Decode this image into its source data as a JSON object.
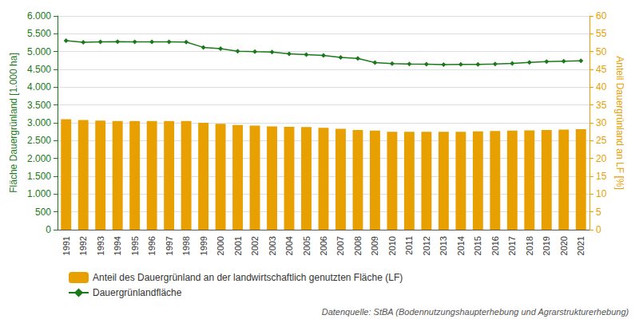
{
  "chart_data": {
    "type": "bar",
    "categories": [
      "1991",
      "1992",
      "1993",
      "1994",
      "1995",
      "1996",
      "1997",
      "1998",
      "1999",
      "2000",
      "2001",
      "2002",
      "2003",
      "2004",
      "2005",
      "2006",
      "2007",
      "2008",
      "2009",
      "2010",
      "2011",
      "2012",
      "2013",
      "2014",
      "2015",
      "2016",
      "2017",
      "2018",
      "2019",
      "2020",
      "2021"
    ],
    "series": [
      {
        "name": "Anteil des Dauergrünland an der landwirtschaftlich genutzten Fläche (LF)",
        "type": "bar",
        "axis": "y2",
        "color": "#E8A000",
        "values": [
          31.0,
          30.8,
          30.6,
          30.5,
          30.5,
          30.5,
          30.5,
          30.5,
          30.0,
          29.7,
          29.4,
          29.2,
          29.0,
          28.9,
          28.8,
          28.6,
          28.3,
          28.0,
          27.8,
          27.5,
          27.5,
          27.5,
          27.5,
          27.5,
          27.6,
          27.7,
          27.8,
          27.9,
          28.0,
          28.1,
          28.2
        ]
      },
      {
        "name": "Dauergrünlandfläche",
        "type": "line",
        "color": "#1A7A1A",
        "marker": "diamond",
        "values": [
          5305,
          5263,
          5270,
          5278,
          5273,
          5271,
          5270,
          5267,
          5118,
          5082,
          5010,
          4998,
          4988,
          4938,
          4912,
          4892,
          4838,
          4808,
          4692,
          4662,
          4652,
          4645,
          4635,
          4638,
          4638,
          4652,
          4670,
          4698,
          4718,
          4728,
          4738
        ]
      }
    ],
    "ylabel": "Fläche Dauergrünland [1.000 ha]",
    "y2label": "Anteil Dauergrünland an LF [%]",
    "ylim": [
      0,
      6000
    ],
    "yticks": [
      0,
      500,
      {
        "value": 1000,
        "label": "1.000"
      },
      {
        "value": 1500,
        "label": "1.500"
      },
      {
        "value": 2000,
        "label": "2.000"
      },
      {
        "value": 2500,
        "label": "2.500"
      },
      {
        "value": 3000,
        "label": "3.000"
      },
      {
        "value": 3500,
        "label": "3.500"
      },
      {
        "value": 4000,
        "label": "4.000"
      },
      {
        "value": 4500,
        "label": "4.500"
      },
      {
        "value": 5000,
        "label": "5.000"
      },
      {
        "value": 5500,
        "label": "5.500"
      },
      {
        "value": 6000,
        "label": "6.000"
      }
    ],
    "y2lim": [
      0,
      60
    ],
    "y2ticks": [
      0,
      5,
      10,
      15,
      20,
      25,
      30,
      35,
      40,
      45,
      50,
      55,
      60
    ],
    "grid": true,
    "legend": "bottom",
    "annotations": [
      "Datenquelle: StBA (Bodennutzungshaupterhebung und Agrarstrukturerhebung)"
    ]
  }
}
